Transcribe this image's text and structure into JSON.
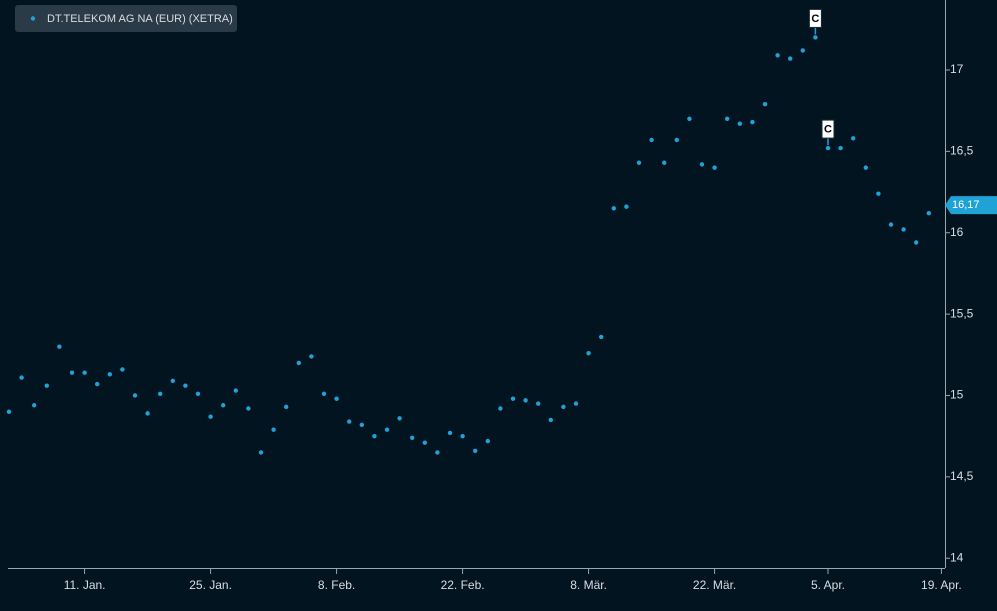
{
  "chart_data": {
    "type": "scatter",
    "series": [
      {
        "name": "DT.TELEKOM AG NA (EUR) (XETRA)",
        "color": "#1fa3d6",
        "values": [
          14.9,
          15.11,
          14.94,
          15.06,
          15.3,
          15.14,
          15.14,
          15.07,
          15.13,
          15.16,
          15.0,
          14.89,
          15.01,
          15.09,
          15.06,
          15.01,
          14.87,
          14.94,
          15.03,
          14.92,
          14.65,
          14.79,
          14.93,
          15.2,
          15.24,
          15.01,
          14.98,
          14.84,
          14.82,
          14.75,
          14.79,
          14.86,
          14.74,
          14.71,
          14.65,
          14.77,
          14.75,
          14.66,
          14.72,
          14.92,
          14.98,
          14.97,
          14.95,
          14.85,
          14.93,
          14.95,
          15.26,
          15.36,
          16.15,
          16.16,
          16.43,
          16.57,
          16.43,
          16.57,
          16.7,
          16.42,
          16.4,
          16.7,
          16.67,
          16.68,
          16.79,
          17.09,
          17.07,
          17.12,
          17.2,
          16.52,
          16.52,
          16.58,
          16.4,
          16.24,
          16.05,
          16.02,
          15.94,
          16.12,
          null
        ]
      }
    ],
    "categories": [
      null,
      null,
      null,
      null,
      null,
      null,
      "11. Jan.",
      null,
      null,
      null,
      null,
      null,
      null,
      null,
      null,
      null,
      "25. Jan.",
      null,
      null,
      null,
      null,
      null,
      null,
      null,
      null,
      null,
      "8. Feb.",
      null,
      null,
      null,
      null,
      null,
      null,
      null,
      null,
      null,
      "22. Feb.",
      null,
      null,
      null,
      null,
      null,
      null,
      null,
      null,
      null,
      "8. Mär.",
      null,
      null,
      null,
      null,
      null,
      null,
      null,
      null,
      null,
      "22. Mär.",
      null,
      null,
      null,
      null,
      null,
      null,
      null,
      null,
      "5. Apr.",
      null,
      null,
      null,
      null,
      null,
      null,
      null,
      null,
      "19. Apr."
    ],
    "ylim": [
      13.94,
      17.43
    ],
    "yticks": [
      14,
      {
        "value": 14.5,
        "label": "14,5"
      },
      15,
      {
        "value": 15.5,
        "label": "15,5"
      },
      16,
      {
        "value": 16.5,
        "label": "16,5"
      },
      17
    ],
    "annotations": [
      {
        "index": 64,
        "text": "C"
      },
      {
        "index": 65,
        "text": "C"
      }
    ],
    "last_price": {
      "value": 16.17,
      "label": "16,17"
    },
    "grid": false,
    "legend": "top-left"
  }
}
